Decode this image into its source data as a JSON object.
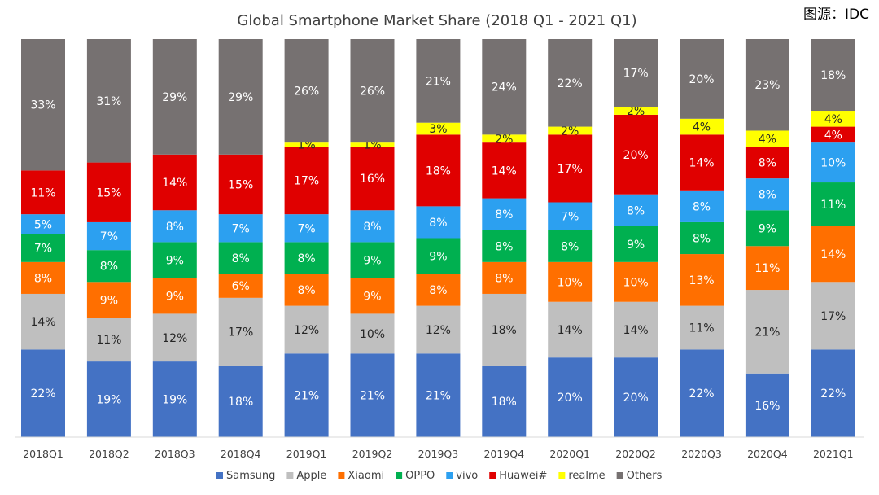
{
  "chart_data": {
    "type": "bar",
    "stacked": true,
    "title": "Global Smartphone Market Share (2018 Q1 - 2021 Q1)",
    "source": "图源：IDC",
    "xlabel": "",
    "ylabel": "",
    "ylim": [
      0,
      100
    ],
    "grid": false,
    "legend_position": "bottom",
    "categories": [
      "2018Q1",
      "2018Q2",
      "2018Q3",
      "2018Q4",
      "2019Q1",
      "2019Q2",
      "2019Q3",
      "2019Q4",
      "2020Q1",
      "2020Q2",
      "2020Q3",
      "2020Q4",
      "2021Q1"
    ],
    "series": [
      {
        "name": "Samsung",
        "color": "#4472C4",
        "label_color": "#ffffff",
        "values": [
          22,
          19,
          19,
          18,
          21,
          21,
          21,
          18,
          20,
          20,
          22,
          16,
          22
        ]
      },
      {
        "name": "Apple",
        "color": "#BFBFBF",
        "label_color": "#262626",
        "values": [
          14,
          11,
          12,
          17,
          12,
          10,
          12,
          18,
          14,
          14,
          11,
          21,
          17
        ]
      },
      {
        "name": "Xiaomi",
        "color": "#FF6F00",
        "label_color": "#ffffff",
        "values": [
          8,
          9,
          9,
          6,
          8,
          9,
          8,
          8,
          10,
          10,
          13,
          11,
          14
        ]
      },
      {
        "name": "OPPO",
        "color": "#00B050",
        "label_color": "#ffffff",
        "values": [
          7,
          8,
          9,
          8,
          8,
          9,
          9,
          8,
          8,
          9,
          8,
          9,
          11
        ]
      },
      {
        "name": "vivo",
        "color": "#2CA0F0",
        "label_color": "#ffffff",
        "values": [
          5,
          7,
          8,
          7,
          7,
          8,
          8,
          8,
          7,
          8,
          8,
          8,
          10
        ]
      },
      {
        "name": "Huawei#",
        "color": "#E00000",
        "label_color": "#ffffff",
        "values": [
          11,
          15,
          14,
          15,
          17,
          16,
          18,
          14,
          17,
          20,
          14,
          8,
          4
        ]
      },
      {
        "name": "realme",
        "color": "#FFFF00",
        "label_color": "#262626",
        "values": [
          0,
          0,
          0,
          0,
          1,
          1,
          3,
          2,
          2,
          2,
          4,
          4,
          4
        ]
      },
      {
        "name": "Others",
        "color": "#767171",
        "label_color": "#ffffff",
        "values": [
          33,
          31,
          29,
          29,
          26,
          26,
          21,
          24,
          22,
          17,
          20,
          23,
          18
        ]
      }
    ],
    "value_suffix": "%"
  }
}
